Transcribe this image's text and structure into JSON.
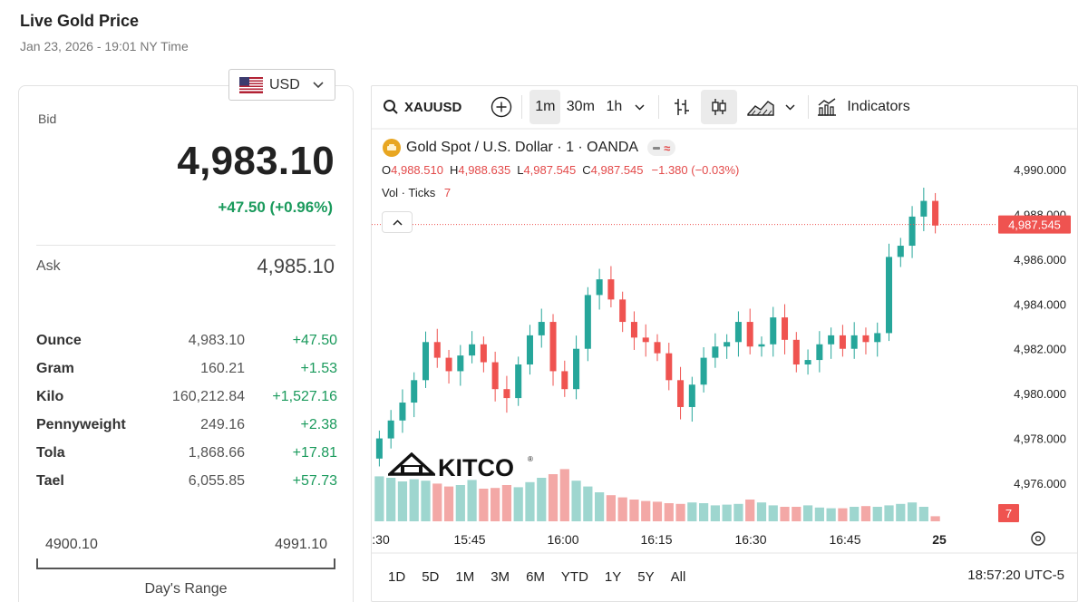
{
  "header": {
    "title": "Live Gold Price",
    "timestamp": "Jan 23, 2026 - 19:01 NY Time"
  },
  "currency": {
    "selected": "USD",
    "icon": "us-flag-icon"
  },
  "quote": {
    "bid_label": "Bid",
    "bid": "4,983.10",
    "change": "+47.50 (+0.96%)",
    "ask_label": "Ask",
    "ask": "4,985.10"
  },
  "units": [
    {
      "name": "Ounce",
      "price": "4,983.10",
      "change": "+47.50"
    },
    {
      "name": "Gram",
      "price": "160.21",
      "change": "+1.53"
    },
    {
      "name": "Kilo",
      "price": "160,212.84",
      "change": "+1,527.16"
    },
    {
      "name": "Pennyweight",
      "price": "249.16",
      "change": "+2.38"
    },
    {
      "name": "Tola",
      "price": "1,868.66",
      "change": "+17.81"
    },
    {
      "name": "Tael",
      "price": "6,055.85",
      "change": "+57.73"
    }
  ],
  "day_range": {
    "low": "4900.10",
    "high": "4991.10",
    "label": "Day's Range"
  },
  "colors": {
    "up": "#26a69a",
    "down": "#ef5350",
    "positive_text": "#1a9a5c",
    "accent_gold": "#e8a621"
  },
  "chart": {
    "toolbar": {
      "symbol": "XAUUSD",
      "intervals": [
        "1m",
        "30m",
        "1h"
      ],
      "active_interval": "1m",
      "indicators": "Indicators"
    },
    "legend": {
      "title": "Gold Spot / U.S. Dollar · 1 · OANDA",
      "o_label": "O",
      "o": "4,988.510",
      "h_label": "H",
      "h": "4,988.635",
      "l_label": "L",
      "l": "4,987.545",
      "c_label": "C",
      "c": "4,987.545",
      "chg": "−1.380 (−0.03%)",
      "vol_label": "Vol · Ticks",
      "vol_value": "7"
    },
    "watermark": "KITCO",
    "price_tag": "4,987.545",
    "volume_tag": "7",
    "ranges": [
      "1D",
      "5D",
      "1M",
      "3M",
      "6M",
      "YTD",
      "1Y",
      "5Y",
      "All"
    ],
    "clock": "18:57:20 UTC-5"
  },
  "chart_data": {
    "type": "candlestick",
    "y_axis_ticks": [
      "4,990.000",
      "4,988.000",
      "4,986.000",
      "4,984.000",
      "4,982.000",
      "4,980.000",
      "4,978.000",
      "4,976.000"
    ],
    "x_axis_ticks": [
      ":30",
      "15:45",
      "16:00",
      "16:15",
      "16:30",
      "16:45",
      "25"
    ],
    "ylim": [
      4975.0,
      4991.5
    ],
    "grid": false,
    "last_price": 4987.545,
    "approx_trajectory": [
      4978.0,
      4978.8,
      4979.6,
      4980.6,
      4982.3,
      4981.6,
      4981.0,
      4981.7,
      4982.2,
      4981.4,
      4980.2,
      4979.8,
      4981.3,
      4982.6,
      4983.2,
      4981.0,
      4980.2,
      4982.0,
      4984.4,
      4985.1,
      4984.2,
      4983.2,
      4982.5,
      4982.3,
      4981.8,
      4980.6,
      4979.4,
      4980.4,
      4981.6,
      4982.1,
      4982.3,
      4983.2,
      4982.1,
      4982.2,
      4983.4,
      4982.4,
      4981.3,
      4981.5,
      4982.2,
      4982.6,
      4982.0,
      4982.6,
      4982.3,
      4982.7,
      4986.1,
      4986.6,
      4987.9,
      4988.6,
      4987.5
    ],
    "volume_relative": [
      0.62,
      0.6,
      0.55,
      0.58,
      0.56,
      0.52,
      0.48,
      0.5,
      0.57,
      0.45,
      0.46,
      0.5,
      0.47,
      0.54,
      0.6,
      0.65,
      0.72,
      0.56,
      0.48,
      0.4,
      0.36,
      0.33,
      0.3,
      0.28,
      0.27,
      0.25,
      0.24,
      0.26,
      0.25,
      0.22,
      0.23,
      0.24,
      0.3,
      0.26,
      0.22,
      0.2,
      0.2,
      0.22,
      0.19,
      0.18,
      0.18,
      0.2,
      0.21,
      0.2,
      0.22,
      0.24,
      0.26,
      0.2,
      0.07
    ]
  }
}
